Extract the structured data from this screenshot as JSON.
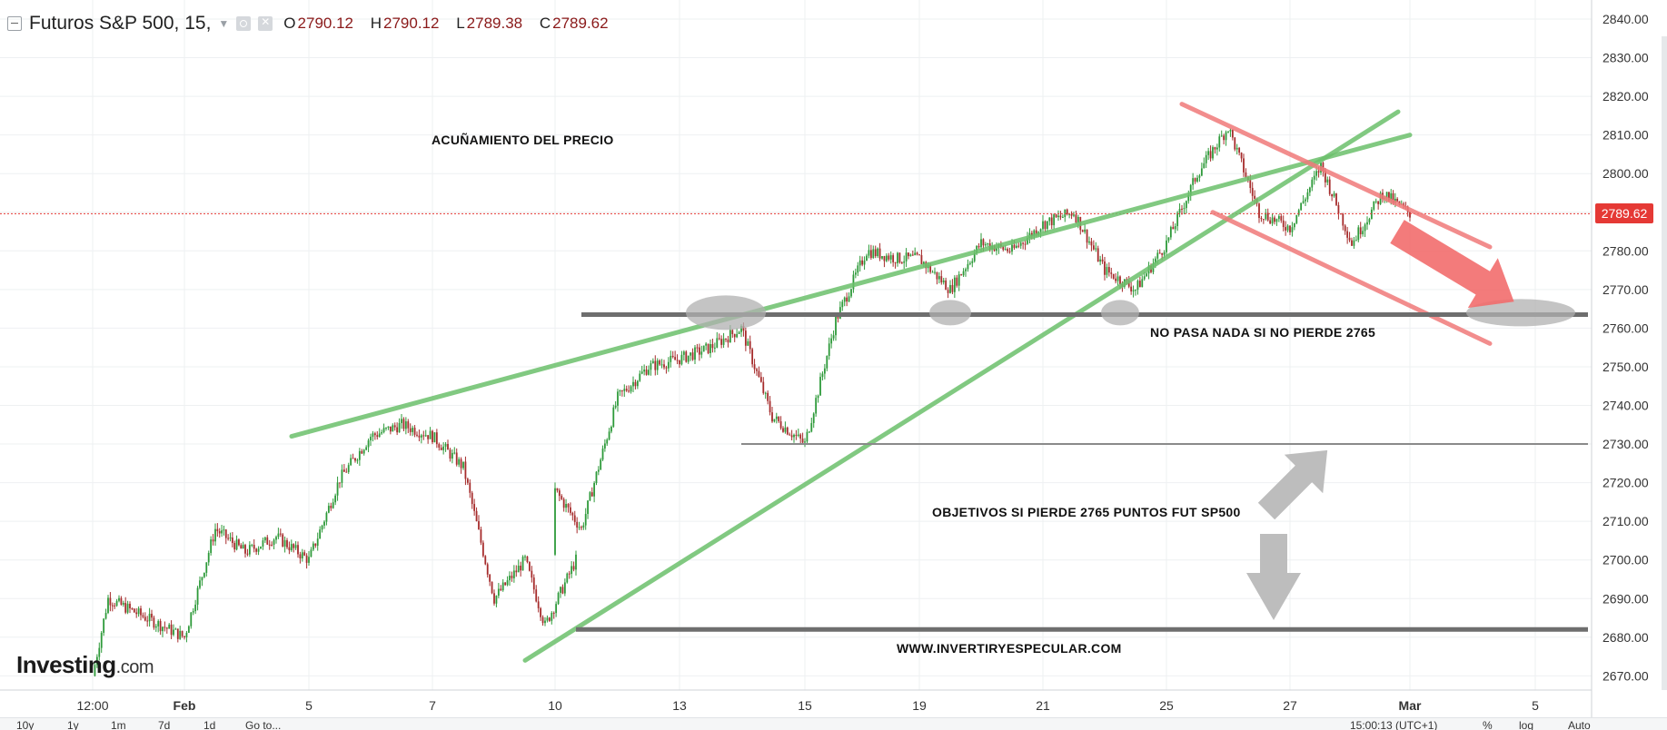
{
  "header": {
    "symbol_title": "Futuros S&P 500, 15,",
    "ohlc": [
      {
        "key": "O",
        "value": "2790.12"
      },
      {
        "key": "H",
        "value": "2790.12"
      },
      {
        "key": "L",
        "value": "2789.38"
      },
      {
        "key": "C",
        "value": "2789.62"
      }
    ]
  },
  "logo": {
    "brand": "Investing",
    "suffix": ".com"
  },
  "price_badge": "2789.62",
  "bottom_bar": {
    "ranges": [
      "10y",
      "1y",
      "1m",
      "7d",
      "1d"
    ],
    "goto": "Go to...",
    "time": "15:00:13 (UTC+1)",
    "pct": "%",
    "log": "log",
    "auto": "Auto"
  },
  "annotations": {
    "wedge": "ACUÑAMIENTO DEL PRECIO",
    "no_pasa": "NO PASA NADA SI NO PIERDE 2765",
    "objetivos": "OBJETIVOS SI PIERDE 2765 PUNTOS FUT SP500",
    "website": "WWW.INVERTIRYESPECULAR.COM"
  },
  "colors": {
    "background": "#ffffff",
    "grid": "#eef0f2",
    "up_candle": "#2e9a3a",
    "down_candle": "#a62c2c",
    "trendline_green": "#6cc06c",
    "channel_red": "#f07a7a",
    "support_dark": "#6e6e6e",
    "price_line": "#e53935",
    "ellipse": "#b0b0b0",
    "arrow_gray": "#bdbdbd"
  },
  "chart_data": {
    "type": "line",
    "title": "Futuros S&P 500, 15",
    "xlabel": "",
    "ylabel": "",
    "x_tick_labels": [
      "12:00",
      "Feb",
      "5",
      "7",
      "10",
      "13",
      "15",
      "19",
      "21",
      "25",
      "27",
      "Mar",
      "5"
    ],
    "y_tick_labels": [
      "2840.00",
      "2830.00",
      "2820.00",
      "2810.00",
      "2800.00",
      "2790.00",
      "2780.00",
      "2770.00",
      "2760.00",
      "2750.00",
      "2740.00",
      "2730.00",
      "2720.00",
      "2710.00",
      "2700.00",
      "2690.00",
      "2680.00",
      "2670.00"
    ],
    "ylim": [
      2666,
      2844
    ],
    "last_price": 2789.62,
    "grid": true,
    "series": [
      {
        "x": [
          "Jan 31 12:00",
          "Jan 31 18:00",
          "Feb 1",
          "Feb 1 12:00",
          "Feb 2",
          "Feb 2 12:00",
          "Feb 5",
          "Feb 5 12:00",
          "Feb 6",
          "Feb 6 12:00",
          "Feb 7",
          "Feb 7 12:00",
          "Feb 8",
          "Feb 8 12:00",
          "Feb 9",
          "Feb 9 12:00",
          "Feb 10",
          "Feb 11",
          "Feb 12",
          "Feb 12 12:00",
          "Feb 13",
          "Feb 13 12:00",
          "Feb 14",
          "Feb 14 12:00",
          "Feb 15",
          "Feb 15 12:00",
          "Feb 16",
          "Feb 16 12:00",
          "Feb 19",
          "Feb 19 12:00",
          "Feb 20",
          "Feb 20 12:00",
          "Feb 21",
          "Feb 21 12:00",
          "Feb 22",
          "Feb 22 12:00",
          "Feb 25",
          "Feb 25 12:00",
          "Feb 26",
          "Feb 26 12:00",
          "Feb 27",
          "Feb 27 12:00",
          "Feb 28",
          "Feb 28 12:00",
          "Mar 1"
        ],
        "close": [
          2670,
          2690,
          2680,
          2708,
          2702,
          2706,
          2700,
          2721,
          2732,
          2735,
          2732,
          2724,
          2690,
          2700,
          2683,
          2700,
          2718,
          2708,
          2742,
          2750,
          2752,
          2755,
          2760,
          2737,
          2730,
          2762,
          2780,
          2778,
          2778,
          2770,
          2782,
          2780,
          2787,
          2790,
          2775,
          2770,
          2782,
          2800,
          2812,
          2790,
          2786,
          2802,
          2782,
          2795,
          2789.62
        ]
      }
    ],
    "drawings": [
      {
        "type": "trendline",
        "color": "green",
        "from": [
          "Feb 4 18:00",
          2732
        ],
        "to": [
          "Mar 1",
          2810
        ]
      },
      {
        "type": "trendline",
        "color": "green",
        "from": [
          "Feb 8 12:00",
          2674
        ],
        "to": [
          "Feb 28 18:00",
          2816
        ]
      },
      {
        "type": "channel_line",
        "color": "red",
        "from": [
          "Feb 25 6:00",
          2818
        ],
        "to": [
          "Mar 4",
          2781
        ]
      },
      {
        "type": "channel_line",
        "color": "red",
        "from": [
          "Feb 25 18:00",
          2790
        ],
        "to": [
          "Mar 4",
          2756
        ]
      },
      {
        "type": "horizontal",
        "color": "dark_gray",
        "y": 2763.5,
        "from": "Feb 11",
        "to": "Mar 5"
      },
      {
        "type": "horizontal",
        "color": "gray",
        "y": 2730,
        "from": "Feb 14",
        "to": "Mar 5"
      },
      {
        "type": "horizontal",
        "color": "dark_gray",
        "y": 2682,
        "from": "Feb 9 12:00",
        "to": "Mar 5"
      }
    ]
  }
}
